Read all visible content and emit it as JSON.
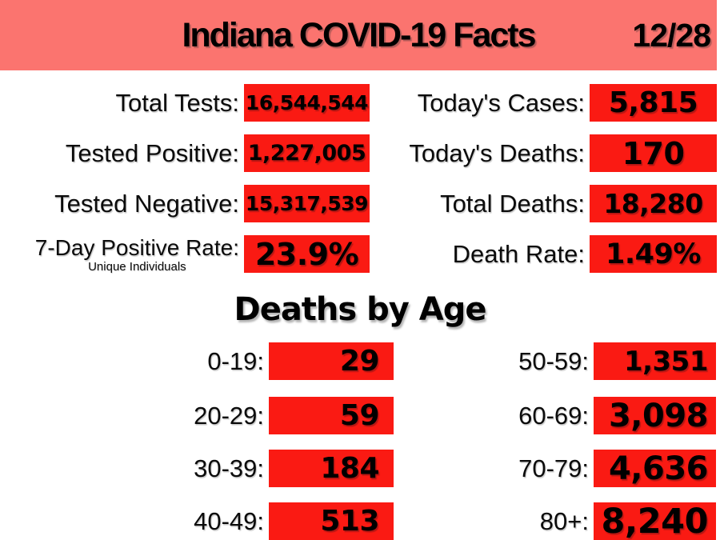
{
  "header": {
    "title": "Indiana COVID-19 Facts",
    "date": "12/28"
  },
  "colors": {
    "header_bg": "#fb746f",
    "value_bg": "#fa1a13",
    "text": "#000000"
  },
  "stats": {
    "left": [
      {
        "label": "Total Tests:",
        "value": "16,544,544"
      },
      {
        "label": "Tested Positive:",
        "value": "1,227,005"
      },
      {
        "label": "Tested Negative:",
        "value": "15,317,539"
      },
      {
        "label": "7-Day Positive Rate:",
        "sublabel": "Unique Individuals",
        "value": "23.9%"
      }
    ],
    "right": [
      {
        "label": "Today's Cases:",
        "value": "5,815"
      },
      {
        "label": "Today's Deaths:",
        "value": "170"
      },
      {
        "label": "Total Deaths:",
        "value": "18,280"
      },
      {
        "label": "Death Rate:",
        "value": "1.49%"
      }
    ]
  },
  "deaths_by_age": {
    "title": "Deaths by Age",
    "left": [
      {
        "label": "0-19:",
        "value": "29"
      },
      {
        "label": "20-29:",
        "value": "59"
      },
      {
        "label": "30-39:",
        "value": "184"
      },
      {
        "label": "40-49:",
        "value": "513"
      }
    ],
    "right": [
      {
        "label": "50-59:",
        "value": "1,351"
      },
      {
        "label": "60-69:",
        "value": "3,098"
      },
      {
        "label": "70-79:",
        "value": "4,636"
      },
      {
        "label": "80+:",
        "value": "8,240"
      }
    ]
  },
  "chart_data": [
    {
      "type": "table",
      "title": "Indiana COVID-19 Facts (12/28)",
      "rows": [
        [
          "Total Tests",
          "16,544,544"
        ],
        [
          "Tested Positive",
          "1,227,005"
        ],
        [
          "Tested Negative",
          "15,317,539"
        ],
        [
          "7-Day Positive Rate (Unique Individuals)",
          "23.9%"
        ],
        [
          "Today's Cases",
          "5,815"
        ],
        [
          "Today's Deaths",
          "170"
        ],
        [
          "Total Deaths",
          "18,280"
        ],
        [
          "Death Rate",
          "1.49%"
        ]
      ]
    },
    {
      "type": "table",
      "title": "Deaths by Age",
      "categories": [
        "0-19",
        "20-29",
        "30-39",
        "40-49",
        "50-59",
        "60-69",
        "70-79",
        "80+"
      ],
      "values": [
        29,
        59,
        184,
        513,
        1351,
        3098,
        4636,
        8240
      ]
    }
  ]
}
